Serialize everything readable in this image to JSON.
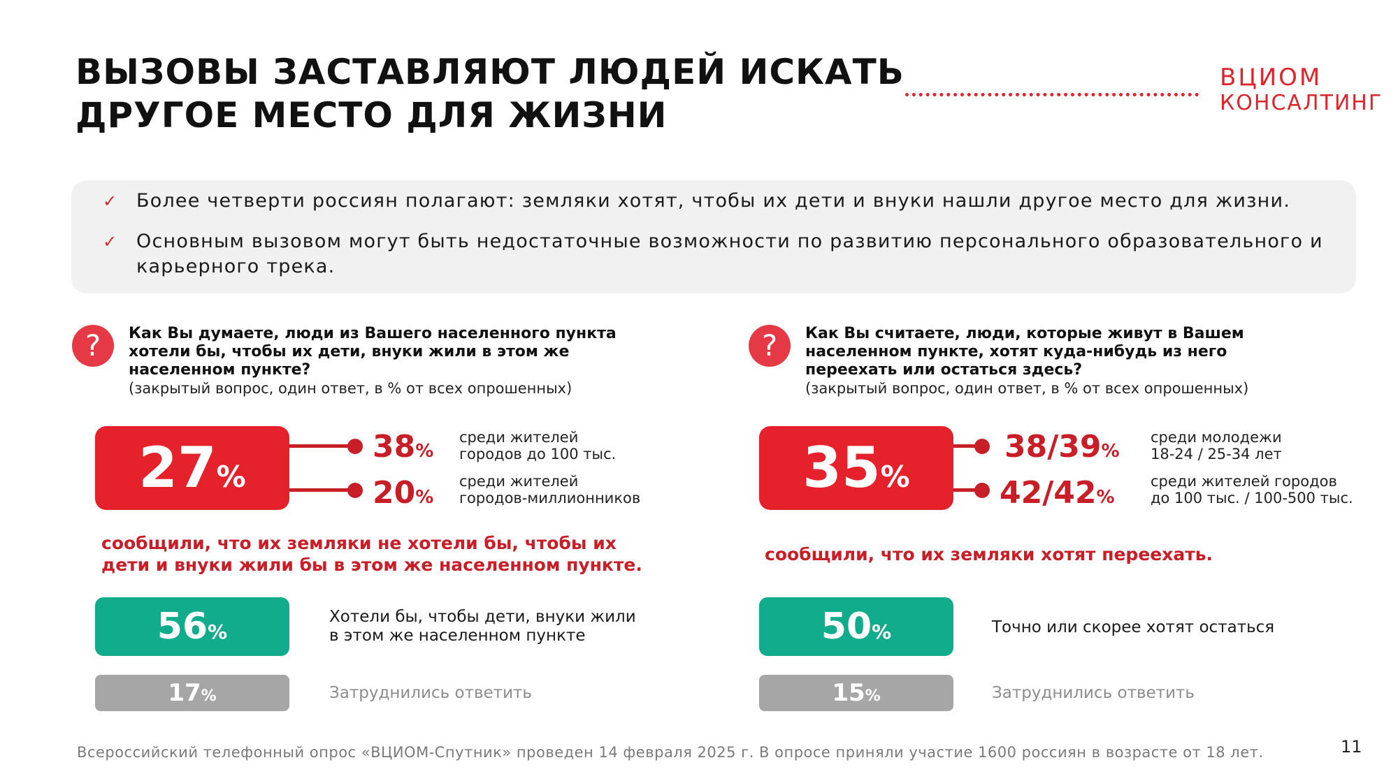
{
  "header": {
    "title_line1": "ВЫЗОВЫ ЗАСТАВЛЯЮТ ЛЮДЕЙ ИСКАТЬ",
    "title_line2": "ДРУГОЕ МЕСТО ДЛЯ ЖИЗНИ",
    "logo_line1": "ВЦИОМ",
    "logo_line2": "КОНСАЛТИНГ"
  },
  "summary": {
    "items": [
      {
        "text": "Более четверти россиян полагают: земляки хотят, чтобы их дети и внуки нашли другое место для жизни."
      },
      {
        "text": "Основным вызовом могут быть недостаточные возможности по развитию персонального образовательного и карьерного трека."
      }
    ]
  },
  "left": {
    "question": "Как Вы думаете, люди из Вашего населенного пункта хотели бы, чтобы их дети, внуки жили в этом же населенном пункте?",
    "note": "(закрытый вопрос, один ответ, в % от всех опрошенных)",
    "main_value": "27",
    "sub1_value": "38",
    "sub1_desc_line1": "среди жителей",
    "sub1_desc_line2": "городов до 100 тыс.",
    "sub2_value": "20",
    "sub2_desc_line1": "среди жителей",
    "sub2_desc_line2": "городов-миллионников",
    "conclusion_line1": "сообщили, что их земляки не хотели бы, чтобы их",
    "conclusion_line2": "дети и внуки жили бы в этом же населенном пункте.",
    "green_value": "56",
    "green_label_line1": "Хотели бы, чтобы дети, внуки жили",
    "green_label_line2": "в этом же населенном пункте",
    "grey_value": "17",
    "grey_label": "Затруднились ответить"
  },
  "right": {
    "question": "Как Вы считаете, люди, которые живут в Вашем населенном пункте, хотят куда-нибудь из него переехать или остаться здесь?",
    "note": "(закрытый вопрос, один ответ, в % от всех опрошенных)",
    "main_value": "35",
    "sub1_value": "38/39",
    "sub1_desc_line1": "среди молодежи",
    "sub1_desc_line2": "18-24 / 25-34 лет",
    "sub2_value": "42/42",
    "sub2_desc_line1": "среди жителей городов",
    "sub2_desc_line2": "до 100 тыс. / 100-500 тыс.",
    "conclusion": "сообщили, что их земляки хотят переехать.",
    "green_value": "50",
    "green_label": "Точно или скорее хотят остаться",
    "grey_value": "15",
    "grey_label": "Затруднились ответить"
  },
  "common": {
    "pct": "%",
    "check": "✓",
    "question_mark": "?"
  },
  "footer": {
    "source": "Всероссийский телефонный опрос «ВЦИОМ-Спутник» проведен 14 февраля 2025 г. В опросе приняли участие 1600 россиян в возрасте от 18 лет.",
    "page_number": "11"
  },
  "colors": {
    "accent_red": "#e5222c",
    "dark_red": "#c81e27",
    "green": "#11ac8c",
    "grey": "#a6a6a6",
    "summary_bg": "#f1f1f1"
  }
}
